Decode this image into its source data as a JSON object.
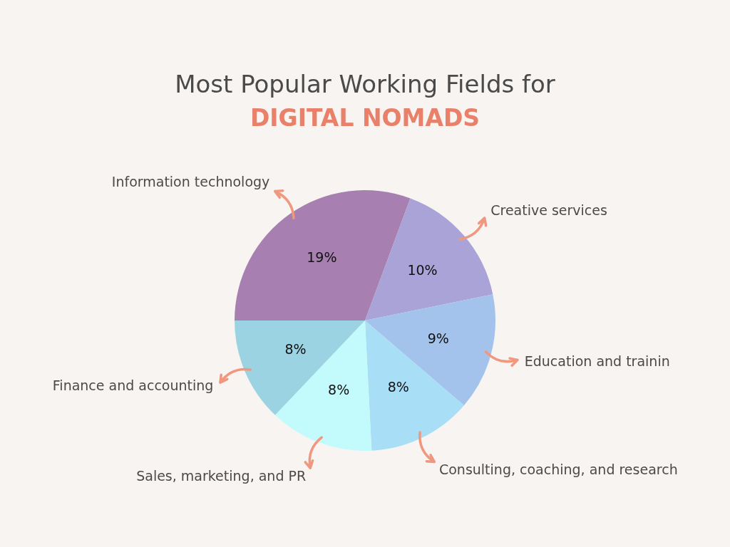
{
  "chart_data": {
    "type": "pie",
    "title": "Most Popular Working Fields for",
    "subtitle": "DIGITAL NOMADS",
    "categories": [
      "Information technology",
      "Creative services",
      "Education and trainin",
      "Consulting, coaching, and research",
      "Sales, marketing, and PR",
      "Finance and accounting"
    ],
    "values": [
      19,
      10,
      9,
      8,
      8,
      8
    ],
    "colors": [
      "#a77fb0",
      "#a9a3d8",
      "#a3c3ec",
      "#a9def7",
      "#c3fbfc",
      "#9bd3e3"
    ],
    "value_labels": [
      "19%",
      "10%",
      "9%",
      "8%",
      "8%",
      "8%"
    ],
    "legend": false
  }
}
